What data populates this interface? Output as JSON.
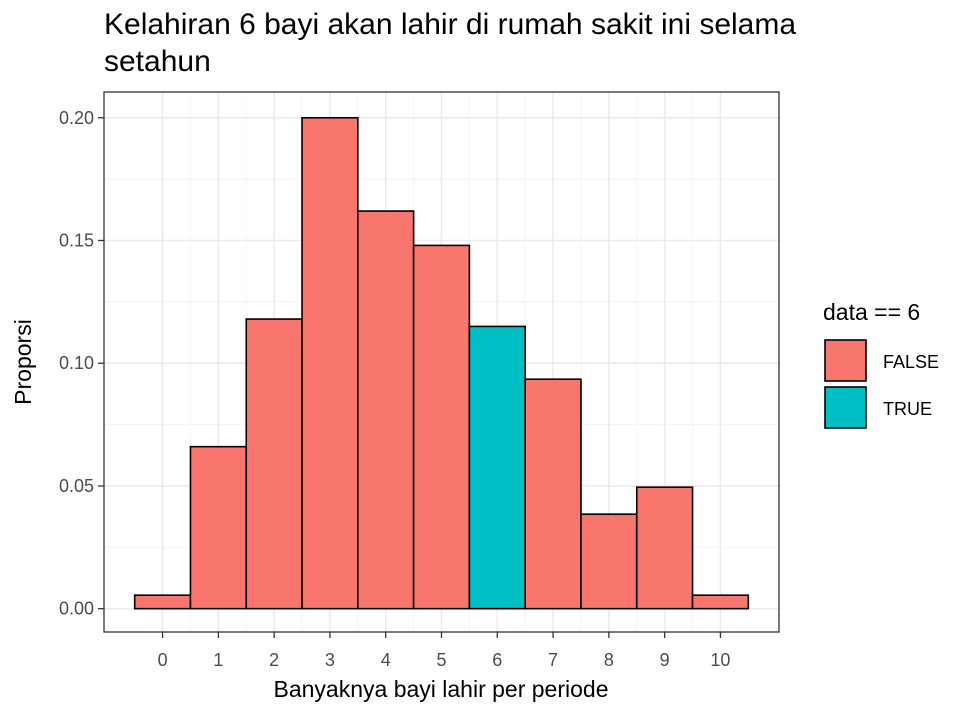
{
  "chart_data": {
    "type": "bar",
    "title": "Kelahiran 6 bayi akan lahir di rumah sakit ini selama setahun",
    "title_lines": [
      "Kelahiran 6 bayi akan lahir di rumah sakit ini selama",
      "setahun"
    ],
    "xlabel": "Banyaknya bayi lahir per periode",
    "ylabel": "Proporsi",
    "categories": [
      "0",
      "1",
      "2",
      "3",
      "4",
      "5",
      "6",
      "7",
      "8",
      "9",
      "10"
    ],
    "x": [
      0,
      1,
      2,
      3,
      4,
      5,
      6,
      7,
      8,
      9,
      10
    ],
    "values": [
      0.0055,
      0.066,
      0.118,
      0.2,
      0.162,
      0.148,
      0.115,
      0.0935,
      0.0385,
      0.0495,
      0.0055
    ],
    "highlight": [
      false,
      false,
      false,
      false,
      false,
      false,
      true,
      false,
      false,
      false,
      false
    ],
    "ylim": [
      -0.0095,
      0.2105
    ],
    "xlim": [
      -1.05,
      11.05
    ],
    "yticks": [
      0.0,
      0.05,
      0.1,
      0.15,
      0.2
    ],
    "ytick_labels": [
      "0.00",
      "0.05",
      "0.10",
      "0.15",
      "0.20"
    ],
    "grid": true,
    "legend": {
      "title": "data == 6",
      "position": "right",
      "entries": [
        {
          "label": "FALSE",
          "color": "#F8766D"
        },
        {
          "label": "TRUE",
          "color": "#00BFC4"
        }
      ]
    },
    "colors": {
      "false": "#F8766D",
      "true": "#00BFC4"
    }
  }
}
